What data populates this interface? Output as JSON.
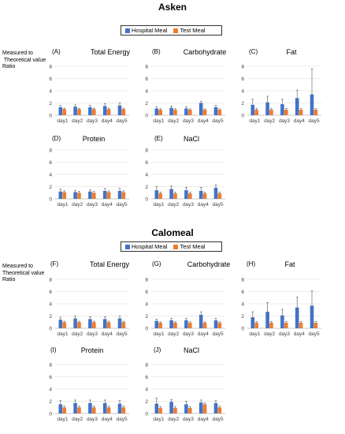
{
  "sections": [
    {
      "title": "Asken",
      "ylabel_lines": [
        "Measured to",
        " Theoretical value",
        "Ratio"
      ]
    },
    {
      "title": "Calomeal",
      "ylabel_lines": [
        "Measured to",
        "Theoretical value",
        "Ratio"
      ]
    }
  ],
  "legend": [
    {
      "name": "Hospital Meal",
      "color": "#4472C4"
    },
    {
      "name": "Test Meal",
      "color": "#ED7D31"
    }
  ],
  "chart_data": [
    {
      "type": "bar",
      "letter": "(A)",
      "title": "Total Energy",
      "categories": [
        "day1",
        "day2",
        "day3",
        "day4",
        "day5"
      ],
      "ylim": [
        0,
        8
      ],
      "yticks": [
        0,
        2,
        4,
        6,
        8
      ],
      "series": [
        {
          "name": "Hospital Meal",
          "values": [
            1.3,
            1.4,
            1.3,
            1.5,
            1.6
          ],
          "errors": [
            0.3,
            0.3,
            0.3,
            0.4,
            0.4
          ]
        },
        {
          "name": "Test Meal",
          "values": [
            1.0,
            1.0,
            1.0,
            1.0,
            1.0
          ],
          "errors": [
            0.15,
            0.15,
            0.15,
            0.15,
            0.15
          ]
        }
      ]
    },
    {
      "type": "bar",
      "letter": "(B)",
      "title": "Carbohydrate",
      "categories": [
        "day1",
        "day2",
        "day3",
        "day4",
        "day5"
      ],
      "ylim": [
        0,
        8
      ],
      "yticks": [
        0,
        2,
        4,
        6,
        8
      ],
      "series": [
        {
          "name": "Hospital Meal",
          "values": [
            1.1,
            1.2,
            1.1,
            2.0,
            1.3
          ],
          "errors": [
            0.3,
            0.3,
            0.3,
            0.3,
            0.3
          ]
        },
        {
          "name": "Test Meal",
          "values": [
            0.9,
            0.9,
            0.9,
            0.9,
            0.9
          ],
          "errors": [
            0.15,
            0.15,
            0.15,
            0.15,
            0.15
          ]
        }
      ]
    },
    {
      "type": "bar",
      "letter": "(C)",
      "title": "Fat",
      "categories": [
        "day1",
        "day2",
        "day3",
        "day4",
        "day5"
      ],
      "ylim": [
        0,
        8
      ],
      "yticks": [
        0,
        2,
        4,
        6,
        8
      ],
      "series": [
        {
          "name": "Hospital Meal",
          "values": [
            1.7,
            2.1,
            1.8,
            2.8,
            3.4
          ],
          "errors": [
            0.9,
            1.0,
            0.8,
            1.3,
            4.2
          ]
        },
        {
          "name": "Test Meal",
          "values": [
            0.9,
            0.9,
            0.9,
            0.9,
            0.9
          ],
          "errors": [
            0.2,
            0.2,
            0.2,
            0.2,
            0.2
          ]
        }
      ]
    },
    {
      "type": "bar",
      "letter": "(D)",
      "title": "Protein",
      "categories": [
        "day1",
        "day2",
        "day3",
        "day4",
        "day5"
      ],
      "ylim": [
        0,
        8
      ],
      "yticks": [
        0,
        2,
        4,
        6,
        8
      ],
      "series": [
        {
          "name": "Hospital Meal",
          "values": [
            1.2,
            1.1,
            1.2,
            1.3,
            1.3
          ],
          "errors": [
            0.4,
            0.3,
            0.3,
            0.4,
            0.4
          ]
        },
        {
          "name": "Test Meal",
          "values": [
            1.1,
            1.0,
            1.0,
            1.1,
            1.1
          ],
          "errors": [
            0.2,
            0.2,
            0.2,
            0.2,
            0.2
          ]
        }
      ]
    },
    {
      "type": "bar",
      "letter": "(E)",
      "title": "NaCl",
      "categories": [
        "day1",
        "day2",
        "day3",
        "day4",
        "day5"
      ],
      "ylim": [
        0,
        8
      ],
      "yticks": [
        0,
        2,
        4,
        6,
        8
      ],
      "series": [
        {
          "name": "Hospital Meal",
          "values": [
            1.4,
            1.6,
            1.4,
            1.3,
            1.8
          ],
          "errors": [
            0.6,
            0.5,
            0.5,
            0.6,
            0.5
          ]
        },
        {
          "name": "Test Meal",
          "values": [
            0.9,
            0.9,
            0.9,
            0.9,
            0.9
          ],
          "errors": [
            0.2,
            0.2,
            0.2,
            0.2,
            0.2
          ]
        }
      ]
    },
    {
      "type": "bar",
      "letter": "(F)",
      "title": "Total Energy",
      "categories": [
        "day1",
        "day2",
        "day3",
        "day4",
        "day5"
      ],
      "ylim": [
        0,
        8
      ],
      "yticks": [
        0,
        2,
        4,
        6,
        8
      ],
      "series": [
        {
          "name": "Hospital Meal",
          "values": [
            1.4,
            1.6,
            1.5,
            1.5,
            1.6
          ],
          "errors": [
            0.4,
            0.4,
            0.4,
            0.4,
            0.4
          ]
        },
        {
          "name": "Test Meal",
          "values": [
            1.0,
            1.0,
            1.0,
            1.0,
            1.0
          ],
          "errors": [
            0.15,
            0.15,
            0.15,
            0.15,
            0.15
          ]
        }
      ]
    },
    {
      "type": "bar",
      "letter": "(G)",
      "title": "Carbohydrate",
      "categories": [
        "day1",
        "day2",
        "day3",
        "day4",
        "day5"
      ],
      "ylim": [
        0,
        8
      ],
      "yticks": [
        0,
        2,
        4,
        6,
        8
      ],
      "series": [
        {
          "name": "Hospital Meal",
          "values": [
            1.2,
            1.3,
            1.3,
            2.2,
            1.3
          ],
          "errors": [
            0.3,
            0.3,
            0.3,
            0.5,
            0.3
          ]
        },
        {
          "name": "Test Meal",
          "values": [
            0.9,
            0.9,
            0.9,
            0.9,
            0.9
          ],
          "errors": [
            0.15,
            0.15,
            0.15,
            0.15,
            0.15
          ]
        }
      ]
    },
    {
      "type": "bar",
      "letter": "(H)",
      "title": "Fat",
      "categories": [
        "day1",
        "day2",
        "day3",
        "day4",
        "day5"
      ],
      "ylim": [
        0,
        8
      ],
      "yticks": [
        0,
        2,
        4,
        6,
        8
      ],
      "series": [
        {
          "name": "Hospital Meal",
          "values": [
            1.8,
            2.7,
            2.1,
            3.4,
            3.7
          ],
          "errors": [
            0.9,
            1.5,
            1.0,
            1.7,
            2.4
          ]
        },
        {
          "name": "Test Meal",
          "values": [
            0.9,
            0.9,
            0.9,
            0.9,
            0.9
          ],
          "errors": [
            0.2,
            0.2,
            0.2,
            0.2,
            0.2
          ]
        }
      ]
    },
    {
      "type": "bar",
      "letter": "(I)",
      "title": "Protein",
      "categories": [
        "day1",
        "day2",
        "day3",
        "day4",
        "day5"
      ],
      "ylim": [
        0,
        8
      ],
      "yticks": [
        0,
        2,
        4,
        6,
        8
      ],
      "series": [
        {
          "name": "Hospital Meal",
          "values": [
            1.5,
            1.7,
            1.7,
            1.7,
            1.6
          ],
          "errors": [
            0.6,
            0.5,
            0.5,
            0.5,
            0.5
          ]
        },
        {
          "name": "Test Meal",
          "values": [
            1.0,
            1.0,
            1.0,
            1.0,
            1.0
          ],
          "errors": [
            0.2,
            0.2,
            0.2,
            0.2,
            0.2
          ]
        }
      ]
    },
    {
      "type": "bar",
      "letter": "(J)",
      "title": "NaCl",
      "categories": [
        "day1",
        "day2",
        "day3",
        "day4",
        "day5"
      ],
      "ylim": [
        0,
        8
      ],
      "yticks": [
        0,
        2,
        4,
        6,
        8
      ],
      "series": [
        {
          "name": "Hospital Meal",
          "values": [
            1.6,
            1.9,
            1.5,
            1.8,
            1.7
          ],
          "errors": [
            0.9,
            0.4,
            0.5,
            0.4,
            0.4
          ]
        },
        {
          "name": "Test Meal",
          "values": [
            0.9,
            0.9,
            0.9,
            1.5,
            1.0
          ],
          "errors": [
            0.2,
            0.2,
            0.2,
            0.2,
            0.2
          ]
        }
      ]
    }
  ]
}
